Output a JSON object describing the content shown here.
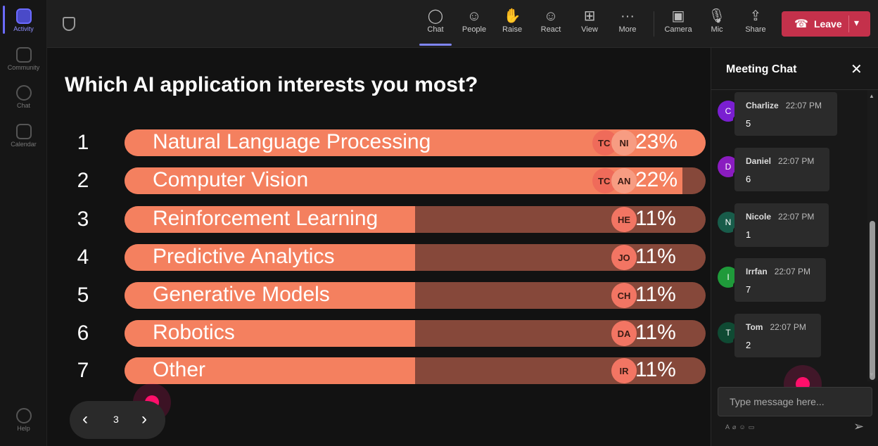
{
  "rail": {
    "items": [
      {
        "label": "Activity",
        "icon": "bell-icon"
      },
      {
        "label": "Community",
        "icon": "community-icon"
      },
      {
        "label": "Chat",
        "icon": "chat-icon"
      },
      {
        "label": "Calendar",
        "icon": "calendar-icon"
      },
      {
        "label": "Help",
        "icon": "help-icon"
      }
    ]
  },
  "toolbar": {
    "buttons": [
      {
        "label": "Chat",
        "glyph": "◯"
      },
      {
        "label": "People",
        "glyph": "☺"
      },
      {
        "label": "Raise",
        "glyph": "✋"
      },
      {
        "label": "React",
        "glyph": "☺"
      },
      {
        "label": "View",
        "glyph": "⊞"
      },
      {
        "label": "More",
        "glyph": "···"
      },
      {
        "label": "Camera",
        "glyph": "▣"
      },
      {
        "label": "Mic",
        "glyph": "🎙"
      },
      {
        "label": "Share",
        "glyph": "⇪"
      }
    ],
    "leave_label": "Leave",
    "leave_color": "#c4314b"
  },
  "poll": {
    "question": "Which AI application interests you most?",
    "bar_color": "#f4805f",
    "track_color": "#86483a",
    "options": [
      {
        "num": "1",
        "label": "Natural Language Processing",
        "pct": "23%",
        "fill": 1.0,
        "avatars": [
          "TC",
          "NI"
        ]
      },
      {
        "num": "2",
        "label": "Computer Vision",
        "pct": "22%",
        "fill": 0.96,
        "avatars": [
          "TC",
          "AN"
        ]
      },
      {
        "num": "3",
        "label": "Reinforcement Learning",
        "pct": "11%",
        "fill": 0.5,
        "avatars": [
          "HE"
        ]
      },
      {
        "num": "4",
        "label": "Predictive Analytics",
        "pct": "11%",
        "fill": 0.5,
        "avatars": [
          "JO"
        ]
      },
      {
        "num": "5",
        "label": "Generative Models",
        "pct": "11%",
        "fill": 0.5,
        "avatars": [
          "CH"
        ]
      },
      {
        "num": "6",
        "label": "Robotics",
        "pct": "11%",
        "fill": 0.5,
        "avatars": [
          "DA"
        ]
      },
      {
        "num": "7",
        "label": "Other",
        "pct": "11%",
        "fill": 0.5,
        "avatars": [
          "IR"
        ]
      }
    ]
  },
  "pager": {
    "page": "3"
  },
  "chat": {
    "title": "Meeting Chat",
    "placeholder": "Type message here...",
    "messages": [
      {
        "initial": "C",
        "name": "Charlize",
        "time": "22:07 PM",
        "text": "5",
        "color": "#7a1fd1"
      },
      {
        "initial": "D",
        "name": "Daniel",
        "time": "22:07 PM",
        "text": "6",
        "color": "#8a1cc0"
      },
      {
        "initial": "N",
        "name": "Nicole",
        "time": "22:07 PM",
        "text": "1",
        "color": "#185c4a"
      },
      {
        "initial": "I",
        "name": "Irrfan",
        "time": "22:07 PM",
        "text": "7",
        "color": "#1f9a3a"
      },
      {
        "initial": "T",
        "name": "Tom",
        "time": "22:07 PM",
        "text": "2",
        "color": "#0f4a33"
      }
    ]
  }
}
